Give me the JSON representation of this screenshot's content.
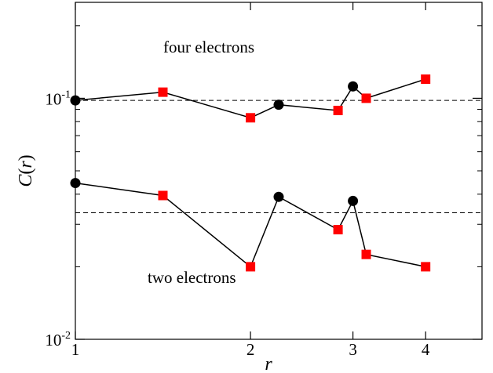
{
  "chart_data": {
    "type": "line",
    "xlabel": "r",
    "ylabel": "C(r)",
    "xscale": "log",
    "yscale": "log",
    "xlim": [
      1,
      5
    ],
    "ylim": [
      0.01,
      0.25
    ],
    "x_ticks": [
      {
        "value": 1,
        "label": "1"
      },
      {
        "value": 2,
        "label": "2"
      },
      {
        "value": 3,
        "label": "3"
      },
      {
        "value": 4,
        "label": "4"
      }
    ],
    "y_ticks": [
      {
        "value": 0.01,
        "base": "10",
        "exponent": "-2"
      },
      {
        "value": 0.1,
        "base": "10",
        "exponent": "-1"
      }
    ],
    "series": [
      {
        "points": [
          {
            "x": 1.0,
            "y": 0.098,
            "marker": "circle"
          },
          {
            "x": 1.414,
            "y": 0.106,
            "marker": "square"
          },
          {
            "x": 2.0,
            "y": 0.083,
            "marker": "square"
          },
          {
            "x": 2.236,
            "y": 0.094,
            "marker": "circle"
          },
          {
            "x": 2.828,
            "y": 0.089,
            "marker": "square"
          },
          {
            "x": 3.0,
            "y": 0.112,
            "marker": "circle"
          },
          {
            "x": 3.162,
            "y": 0.1,
            "marker": "square"
          },
          {
            "x": 4.0,
            "y": 0.12,
            "marker": "square"
          }
        ],
        "reference_y": 0.098
      },
      {
        "points": [
          {
            "x": 1.0,
            "y": 0.0445,
            "marker": "circle"
          },
          {
            "x": 1.414,
            "y": 0.0395,
            "marker": "square"
          },
          {
            "x": 2.0,
            "y": 0.02,
            "marker": "square"
          },
          {
            "x": 2.236,
            "y": 0.039,
            "marker": "circle"
          },
          {
            "x": 2.828,
            "y": 0.0285,
            "marker": "square"
          },
          {
            "x": 3.0,
            "y": 0.0375,
            "marker": "circle"
          },
          {
            "x": 3.162,
            "y": 0.0225,
            "marker": "square"
          },
          {
            "x": 4.0,
            "y": 0.02,
            "marker": "square"
          }
        ],
        "reference_y": 0.0335
      }
    ],
    "annotations": {
      "upper": "four electrons",
      "lower": "two electrons"
    },
    "colors": {
      "circle": "#000000",
      "square": "#ff0000",
      "line": "#000000",
      "reference": "#000000"
    },
    "grid": false,
    "legend": "none"
  }
}
